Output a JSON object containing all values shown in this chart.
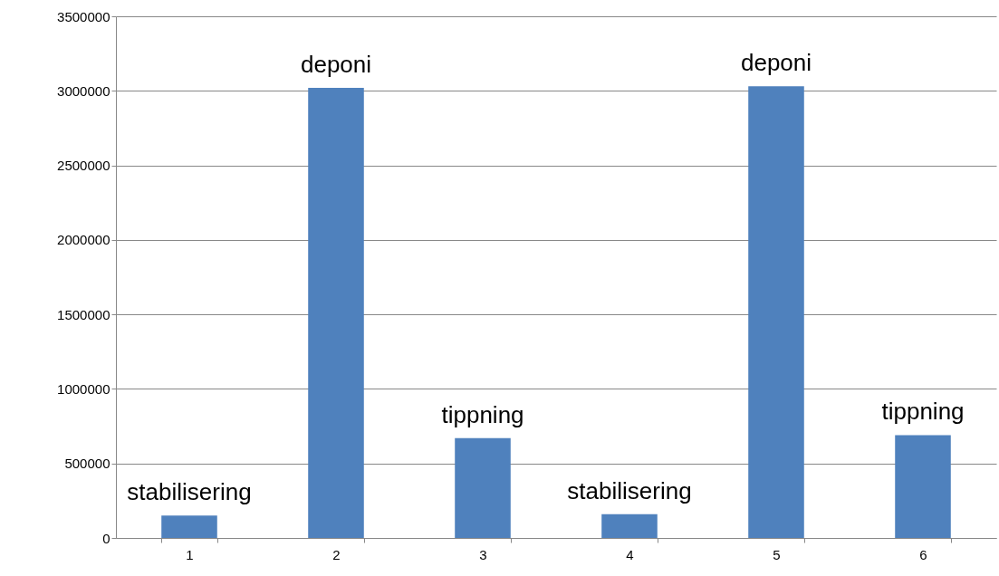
{
  "chart_data": {
    "type": "bar",
    "categories": [
      "1",
      "2",
      "3",
      "4",
      "5",
      "6"
    ],
    "series": [
      {
        "color": "#4f81bd",
        "values": [
          150000,
          3020000,
          670000,
          160000,
          3030000,
          690000
        ]
      }
    ],
    "ylim": [
      0,
      3500000
    ],
    "yticks": [
      0,
      500000,
      1000000,
      1500000,
      2000000,
      2500000,
      3000000,
      3500000
    ],
    "grid": "y",
    "annotations": [
      {
        "text": "stabilisering",
        "x": "1",
        "y": 150000
      },
      {
        "text": "deponi",
        "x": "2",
        "y": 3020000
      },
      {
        "text": "tippning",
        "x": "3",
        "y": 670000
      },
      {
        "text": "stabilisering",
        "x": "4",
        "y": 160000
      },
      {
        "text": "deponi",
        "x": "5",
        "y": 3030000
      },
      {
        "text": "tippning",
        "x": "6",
        "y": 690000
      }
    ]
  }
}
